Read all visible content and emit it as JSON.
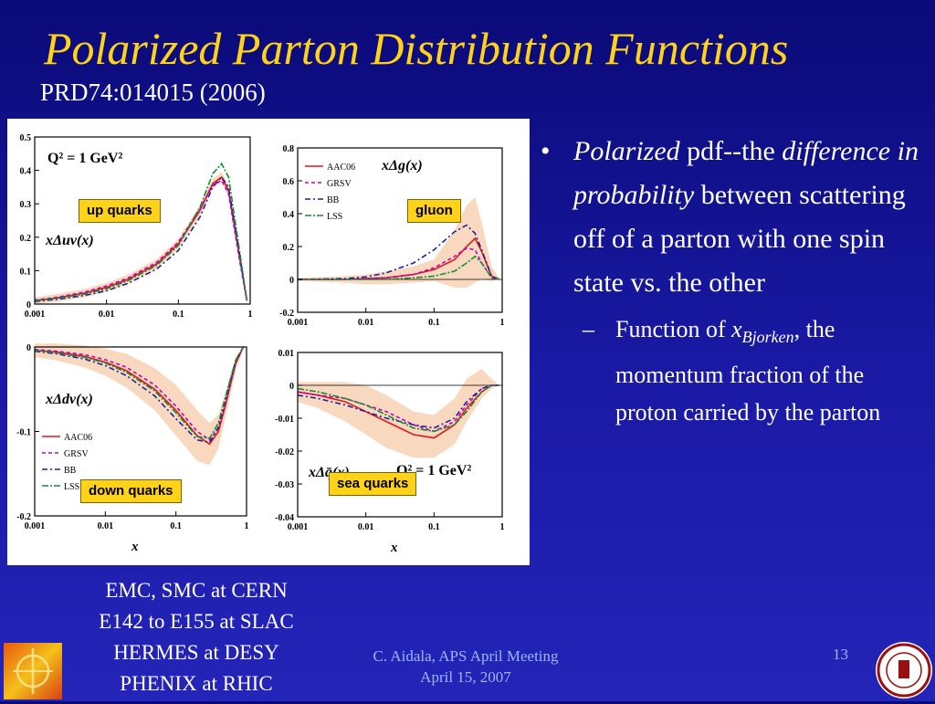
{
  "slide": {
    "title": "Polarized Parton Distribution Functions",
    "reference": "PRD74:014015 (2006)",
    "bullet": {
      "italic_lead": "Polarized",
      "text_a": " pdf--the ",
      "italic_mid": "difference in probability",
      "text_b": " between scattering off of a parton with one spin state vs. the other"
    },
    "subbullet": {
      "text_a": "Function of ",
      "x_symbol": "x",
      "x_subscript": "Bjorken",
      "text_b": ", the momentum fraction of the proton carried by the parton"
    },
    "experiments": [
      "EMC, SMC at CERN",
      "E142 to E155 at SLAC",
      "HERMES at DESY",
      "PHENIX at RHIC"
    ],
    "footer": {
      "credit_line1": "C. Aidala, APS April Meeting",
      "credit_line2": "April 15, 2007",
      "slide_number": "13"
    },
    "bullet_glyph": "•",
    "dash_glyph": "–",
    "colors": {
      "background": "#1414a0",
      "title": "#ffd21a",
      "label_box": "#ffd21a",
      "AAC06": "#e01818",
      "GRSV": "#c000c0",
      "BB": "#2020a0",
      "LSS": "#109030",
      "band": "#f2b98a"
    }
  },
  "chart_data": [
    {
      "type": "line",
      "id": "up",
      "tag": "up quarks",
      "annotation": "Q² = 1 GeV²",
      "ylabel_text": "xΔuv(x)",
      "xlabel": "",
      "xscale": "log",
      "xlim": [
        0.001,
        1
      ],
      "ylim": [
        0,
        0.5
      ],
      "x_ticks": [
        "0.001",
        "0.01",
        "0.1",
        "1"
      ],
      "y_ticks": [
        "0",
        "0.1",
        "0.2",
        "0.3",
        "0.4",
        "0.5"
      ],
      "x": [
        0.001,
        0.002,
        0.005,
        0.01,
        0.02,
        0.05,
        0.1,
        0.2,
        0.3,
        0.4,
        0.5,
        0.7,
        0.9
      ],
      "series": [
        {
          "name": "AAC06",
          "values": [
            0.01,
            0.018,
            0.033,
            0.05,
            0.074,
            0.12,
            0.18,
            0.28,
            0.36,
            0.38,
            0.34,
            0.15,
            0.01
          ]
        },
        {
          "name": "GRSV",
          "values": [
            0.012,
            0.02,
            0.036,
            0.054,
            0.078,
            0.125,
            0.185,
            0.285,
            0.355,
            0.37,
            0.33,
            0.14,
            0.01
          ]
        },
        {
          "name": "BB",
          "values": [
            0.008,
            0.014,
            0.026,
            0.04,
            0.062,
            0.105,
            0.16,
            0.26,
            0.35,
            0.38,
            0.35,
            0.16,
            0.01
          ]
        },
        {
          "name": "LSS",
          "values": [
            0.01,
            0.017,
            0.03,
            0.046,
            0.07,
            0.116,
            0.175,
            0.29,
            0.39,
            0.42,
            0.38,
            0.17,
            0.01
          ]
        }
      ],
      "band": {
        "lower": [
          0.0,
          0.006,
          0.02,
          0.036,
          0.06,
          0.105,
          0.165,
          0.265,
          0.345,
          0.365,
          0.325,
          0.14,
          0.005
        ],
        "upper": [
          0.02,
          0.03,
          0.046,
          0.064,
          0.088,
          0.135,
          0.195,
          0.295,
          0.375,
          0.395,
          0.355,
          0.16,
          0.015
        ]
      }
    },
    {
      "type": "line",
      "id": "gluon",
      "tag": "gluon",
      "ylabel_text": "xΔg(x)",
      "xlabel": "",
      "xscale": "log",
      "xlim": [
        0.001,
        1
      ],
      "ylim": [
        -0.2,
        0.8
      ],
      "x_ticks": [
        "0.001",
        "0.01",
        "0.1",
        "1"
      ],
      "y_ticks": [
        "-0.2",
        "0",
        "0.2",
        "0.4",
        "0.6",
        "0.8"
      ],
      "legend": [
        "AAC06",
        "GRSV",
        "BB",
        "LSS"
      ],
      "x": [
        0.001,
        0.005,
        0.01,
        0.02,
        0.05,
        0.1,
        0.2,
        0.3,
        0.4,
        0.5,
        0.7,
        0.9
      ],
      "series": [
        {
          "name": "AAC06",
          "values": [
            0.0,
            0.0,
            0.005,
            0.01,
            0.03,
            0.06,
            0.12,
            0.2,
            0.25,
            0.17,
            0.02,
            0.0
          ]
        },
        {
          "name": "GRSV",
          "values": [
            0.0,
            0.0,
            0.005,
            0.01,
            0.03,
            0.07,
            0.14,
            0.19,
            0.18,
            0.1,
            0.01,
            0.0
          ]
        },
        {
          "name": "BB",
          "values": [
            0.0,
            0.005,
            0.015,
            0.04,
            0.1,
            0.18,
            0.29,
            0.33,
            0.28,
            0.18,
            0.02,
            0.0
          ]
        },
        {
          "name": "LSS",
          "values": [
            0.0,
            0.0,
            0.0,
            0.0,
            0.01,
            0.02,
            0.05,
            0.1,
            0.14,
            0.1,
            0.01,
            0.0
          ]
        }
      ],
      "band": {
        "lower": [
          -0.01,
          -0.02,
          -0.03,
          -0.03,
          -0.02,
          -0.01,
          -0.05,
          -0.05,
          -0.02,
          0.0,
          -0.01,
          0.0
        ],
        "upper": [
          0.01,
          0.02,
          0.03,
          0.05,
          0.08,
          0.12,
          0.3,
          0.45,
          0.5,
          0.35,
          0.08,
          0.01
        ]
      }
    },
    {
      "type": "line",
      "id": "down",
      "tag": "down quarks",
      "ylabel_text": "xΔdv(x)",
      "xlabel": "x",
      "xscale": "log",
      "xlim": [
        0.001,
        1
      ],
      "ylim": [
        -0.2,
        0
      ],
      "x_ticks": [
        "0.001",
        "0.01",
        "0.1",
        "1"
      ],
      "y_ticks": [
        "-0.2",
        "-0.1",
        "0"
      ],
      "legend": [
        "AAC06",
        "GRSV",
        "BB",
        "LSS"
      ],
      "x": [
        0.001,
        0.002,
        0.005,
        0.01,
        0.02,
        0.05,
        0.1,
        0.2,
        0.3,
        0.4,
        0.5,
        0.7,
        0.9
      ],
      "series": [
        {
          "name": "AAC06",
          "values": [
            -0.004,
            -0.006,
            -0.011,
            -0.018,
            -0.028,
            -0.05,
            -0.075,
            -0.105,
            -0.115,
            -0.1,
            -0.07,
            -0.02,
            0.0
          ]
        },
        {
          "name": "GRSV",
          "values": [
            -0.003,
            -0.005,
            -0.009,
            -0.015,
            -0.024,
            -0.045,
            -0.07,
            -0.1,
            -0.11,
            -0.096,
            -0.066,
            -0.018,
            0.0
          ]
        },
        {
          "name": "BB",
          "values": [
            -0.005,
            -0.008,
            -0.014,
            -0.022,
            -0.034,
            -0.058,
            -0.085,
            -0.11,
            -0.113,
            -0.095,
            -0.063,
            -0.017,
            0.0
          ]
        },
        {
          "name": "LSS",
          "values": [
            -0.004,
            -0.007,
            -0.012,
            -0.019,
            -0.03,
            -0.052,
            -0.078,
            -0.106,
            -0.108,
            -0.09,
            -0.06,
            -0.016,
            0.0
          ]
        }
      ],
      "band": {
        "lower": [
          -0.012,
          -0.016,
          -0.024,
          -0.034,
          -0.048,
          -0.075,
          -0.105,
          -0.135,
          -0.14,
          -0.12,
          -0.085,
          -0.028,
          -0.002
        ],
        "upper": [
          0.004,
          0.004,
          0.002,
          -0.002,
          -0.008,
          -0.025,
          -0.045,
          -0.075,
          -0.09,
          -0.08,
          -0.055,
          -0.012,
          0.002
        ]
      }
    },
    {
      "type": "line",
      "id": "sea",
      "tag": "sea quarks",
      "annotation": "Q² = 1 GeV²",
      "ylabel_text": "xΔq̄(x)",
      "xlabel": "x",
      "xscale": "log",
      "xlim": [
        0.001,
        1
      ],
      "ylim": [
        -0.04,
        0.01
      ],
      "x_ticks": [
        "0.001",
        "0.01",
        "0.1",
        "1"
      ],
      "y_ticks": [
        "-0.04",
        "-0.03",
        "-0.02",
        "-0.01",
        "0",
        "0.01"
      ],
      "x": [
        0.001,
        0.002,
        0.005,
        0.01,
        0.02,
        0.05,
        0.1,
        0.2,
        0.3,
        0.5,
        0.7,
        0.9
      ],
      "series": [
        {
          "name": "AAC06",
          "values": [
            -0.002,
            -0.003,
            -0.005,
            -0.008,
            -0.011,
            -0.015,
            -0.016,
            -0.012,
            -0.007,
            -0.002,
            0.0,
            0.0
          ]
        },
        {
          "name": "GRSV",
          "values": [
            -0.002,
            -0.003,
            -0.004,
            -0.006,
            -0.008,
            -0.012,
            -0.014,
            -0.011,
            -0.006,
            -0.001,
            0.0,
            0.0
          ]
        },
        {
          "name": "BB",
          "values": [
            -0.003,
            -0.004,
            -0.006,
            -0.008,
            -0.01,
            -0.012,
            -0.013,
            -0.01,
            -0.005,
            -0.001,
            0.0,
            0.0
          ]
        },
        {
          "name": "LSS",
          "values": [
            -0.001,
            -0.002,
            -0.004,
            -0.006,
            -0.009,
            -0.013,
            -0.014,
            -0.012,
            -0.008,
            -0.002,
            0.0,
            0.0
          ]
        }
      ],
      "band": {
        "lower": [
          -0.005,
          -0.007,
          -0.011,
          -0.015,
          -0.019,
          -0.022,
          -0.022,
          -0.018,
          -0.011,
          -0.004,
          -0.001,
          0.0
        ],
        "upper": [
          0.001,
          0.001,
          0.001,
          0.0,
          -0.003,
          -0.008,
          -0.009,
          -0.004,
          0.002,
          0.005,
          0.002,
          0.0
        ]
      }
    }
  ]
}
